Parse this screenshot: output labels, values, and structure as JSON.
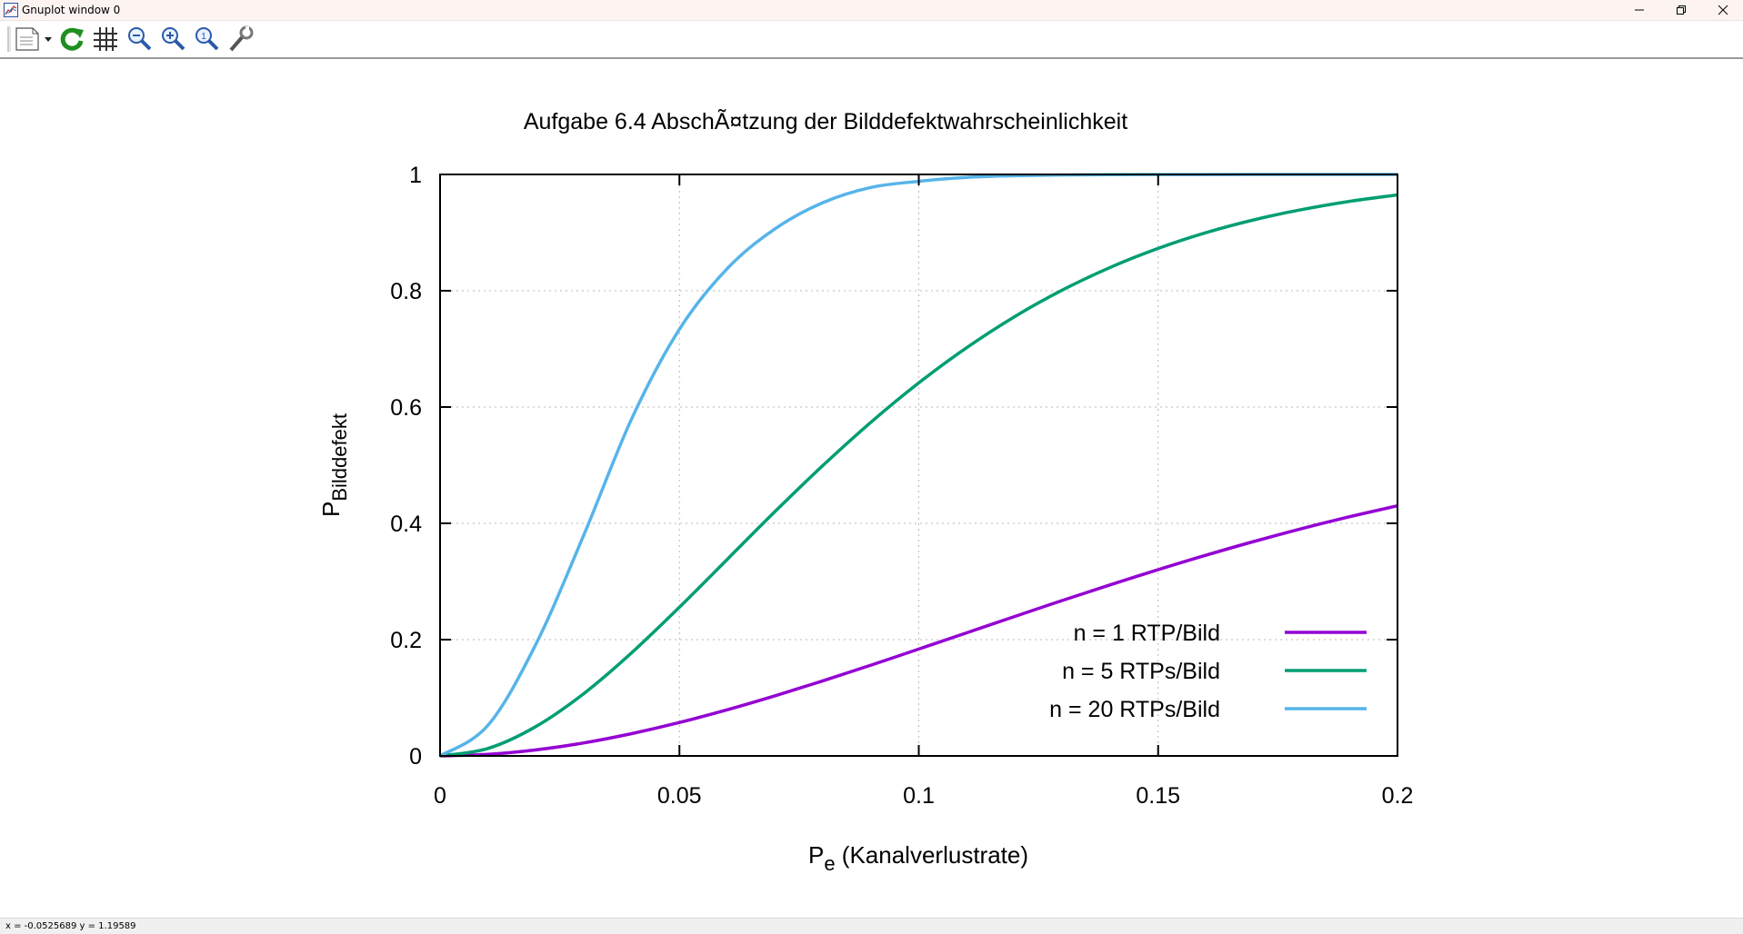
{
  "window": {
    "title": "Gnuplot window 0"
  },
  "toolbar": {
    "items": [
      {
        "name": "options-menu-icon"
      },
      {
        "name": "replot-icon"
      },
      {
        "name": "grid-icon"
      },
      {
        "name": "zoom-previous-icon"
      },
      {
        "name": "zoom-next-icon"
      },
      {
        "name": "autoscale-icon"
      },
      {
        "name": "configure-icon"
      }
    ]
  },
  "status": {
    "text": "x = -0.0525689 y = 1.19589"
  },
  "chart_data": {
    "type": "line",
    "title": "Aufgabe 6.4 AbschÃ¤tzung der Bilddefektwahrscheinlichkeit",
    "xlabel": {
      "main": "P",
      "sub": "e",
      "rest": " (Kanalverlustrate)"
    },
    "ylabel": {
      "main": "P",
      "sub": "Bilddefekt"
    },
    "xlim": [
      0,
      0.2
    ],
    "ylim": [
      0,
      1
    ],
    "xticks": [
      0,
      0.05,
      0.1,
      0.15,
      0.2
    ],
    "xtick_labels": [
      "0",
      "0.05",
      "0.1",
      "0.15",
      "0.2"
    ],
    "yticks": [
      0,
      0.2,
      0.4,
      0.6,
      0.8,
      1
    ],
    "ytick_labels": [
      "0",
      "0.2",
      "0.4",
      "0.6",
      "0.8",
      "1"
    ],
    "grid": true,
    "legend_position": "bottom-right",
    "x": [
      0,
      0.01,
      0.02,
      0.03,
      0.04,
      0.05,
      0.06,
      0.07,
      0.08,
      0.09,
      0.1,
      0.11,
      0.12,
      0.13,
      0.14,
      0.15,
      0.16,
      0.17,
      0.18,
      0.19,
      0.2
    ],
    "series": [
      {
        "name": "n = 1 RTP/Bild",
        "color": "#9400d3",
        "values": [
          0,
          0.0026,
          0.0103,
          0.0224,
          0.0383,
          0.0575,
          0.0794,
          0.1035,
          0.1292,
          0.1561,
          0.1837,
          0.2117,
          0.2397,
          0.2673,
          0.2942,
          0.3203,
          0.3452,
          0.3688,
          0.3909,
          0.4114,
          0.4302
        ]
      },
      {
        "name": "n = 5 RTPs/Bild",
        "color": "#009e73",
        "values": [
          0,
          0.0128,
          0.0504,
          0.1071,
          0.1772,
          0.2558,
          0.3381,
          0.4205,
          0.4997,
          0.5738,
          0.6415,
          0.7021,
          0.7553,
          0.8012,
          0.8401,
          0.8728,
          0.8999,
          0.9219,
          0.9396,
          0.9537,
          0.9649
        ]
      },
      {
        "name": "n = 20 RTPs/Bild",
        "color": "#56b4e9",
        "values": [
          0,
          0.0525,
          0.1918,
          0.3795,
          0.5793,
          0.7339,
          0.8382,
          0.9066,
          0.9516,
          0.9776,
          0.9882,
          0.9949,
          0.9978,
          0.9991,
          0.9996,
          0.9998,
          0.9999,
          1.0,
          1.0,
          1.0,
          1.0
        ]
      }
    ]
  }
}
